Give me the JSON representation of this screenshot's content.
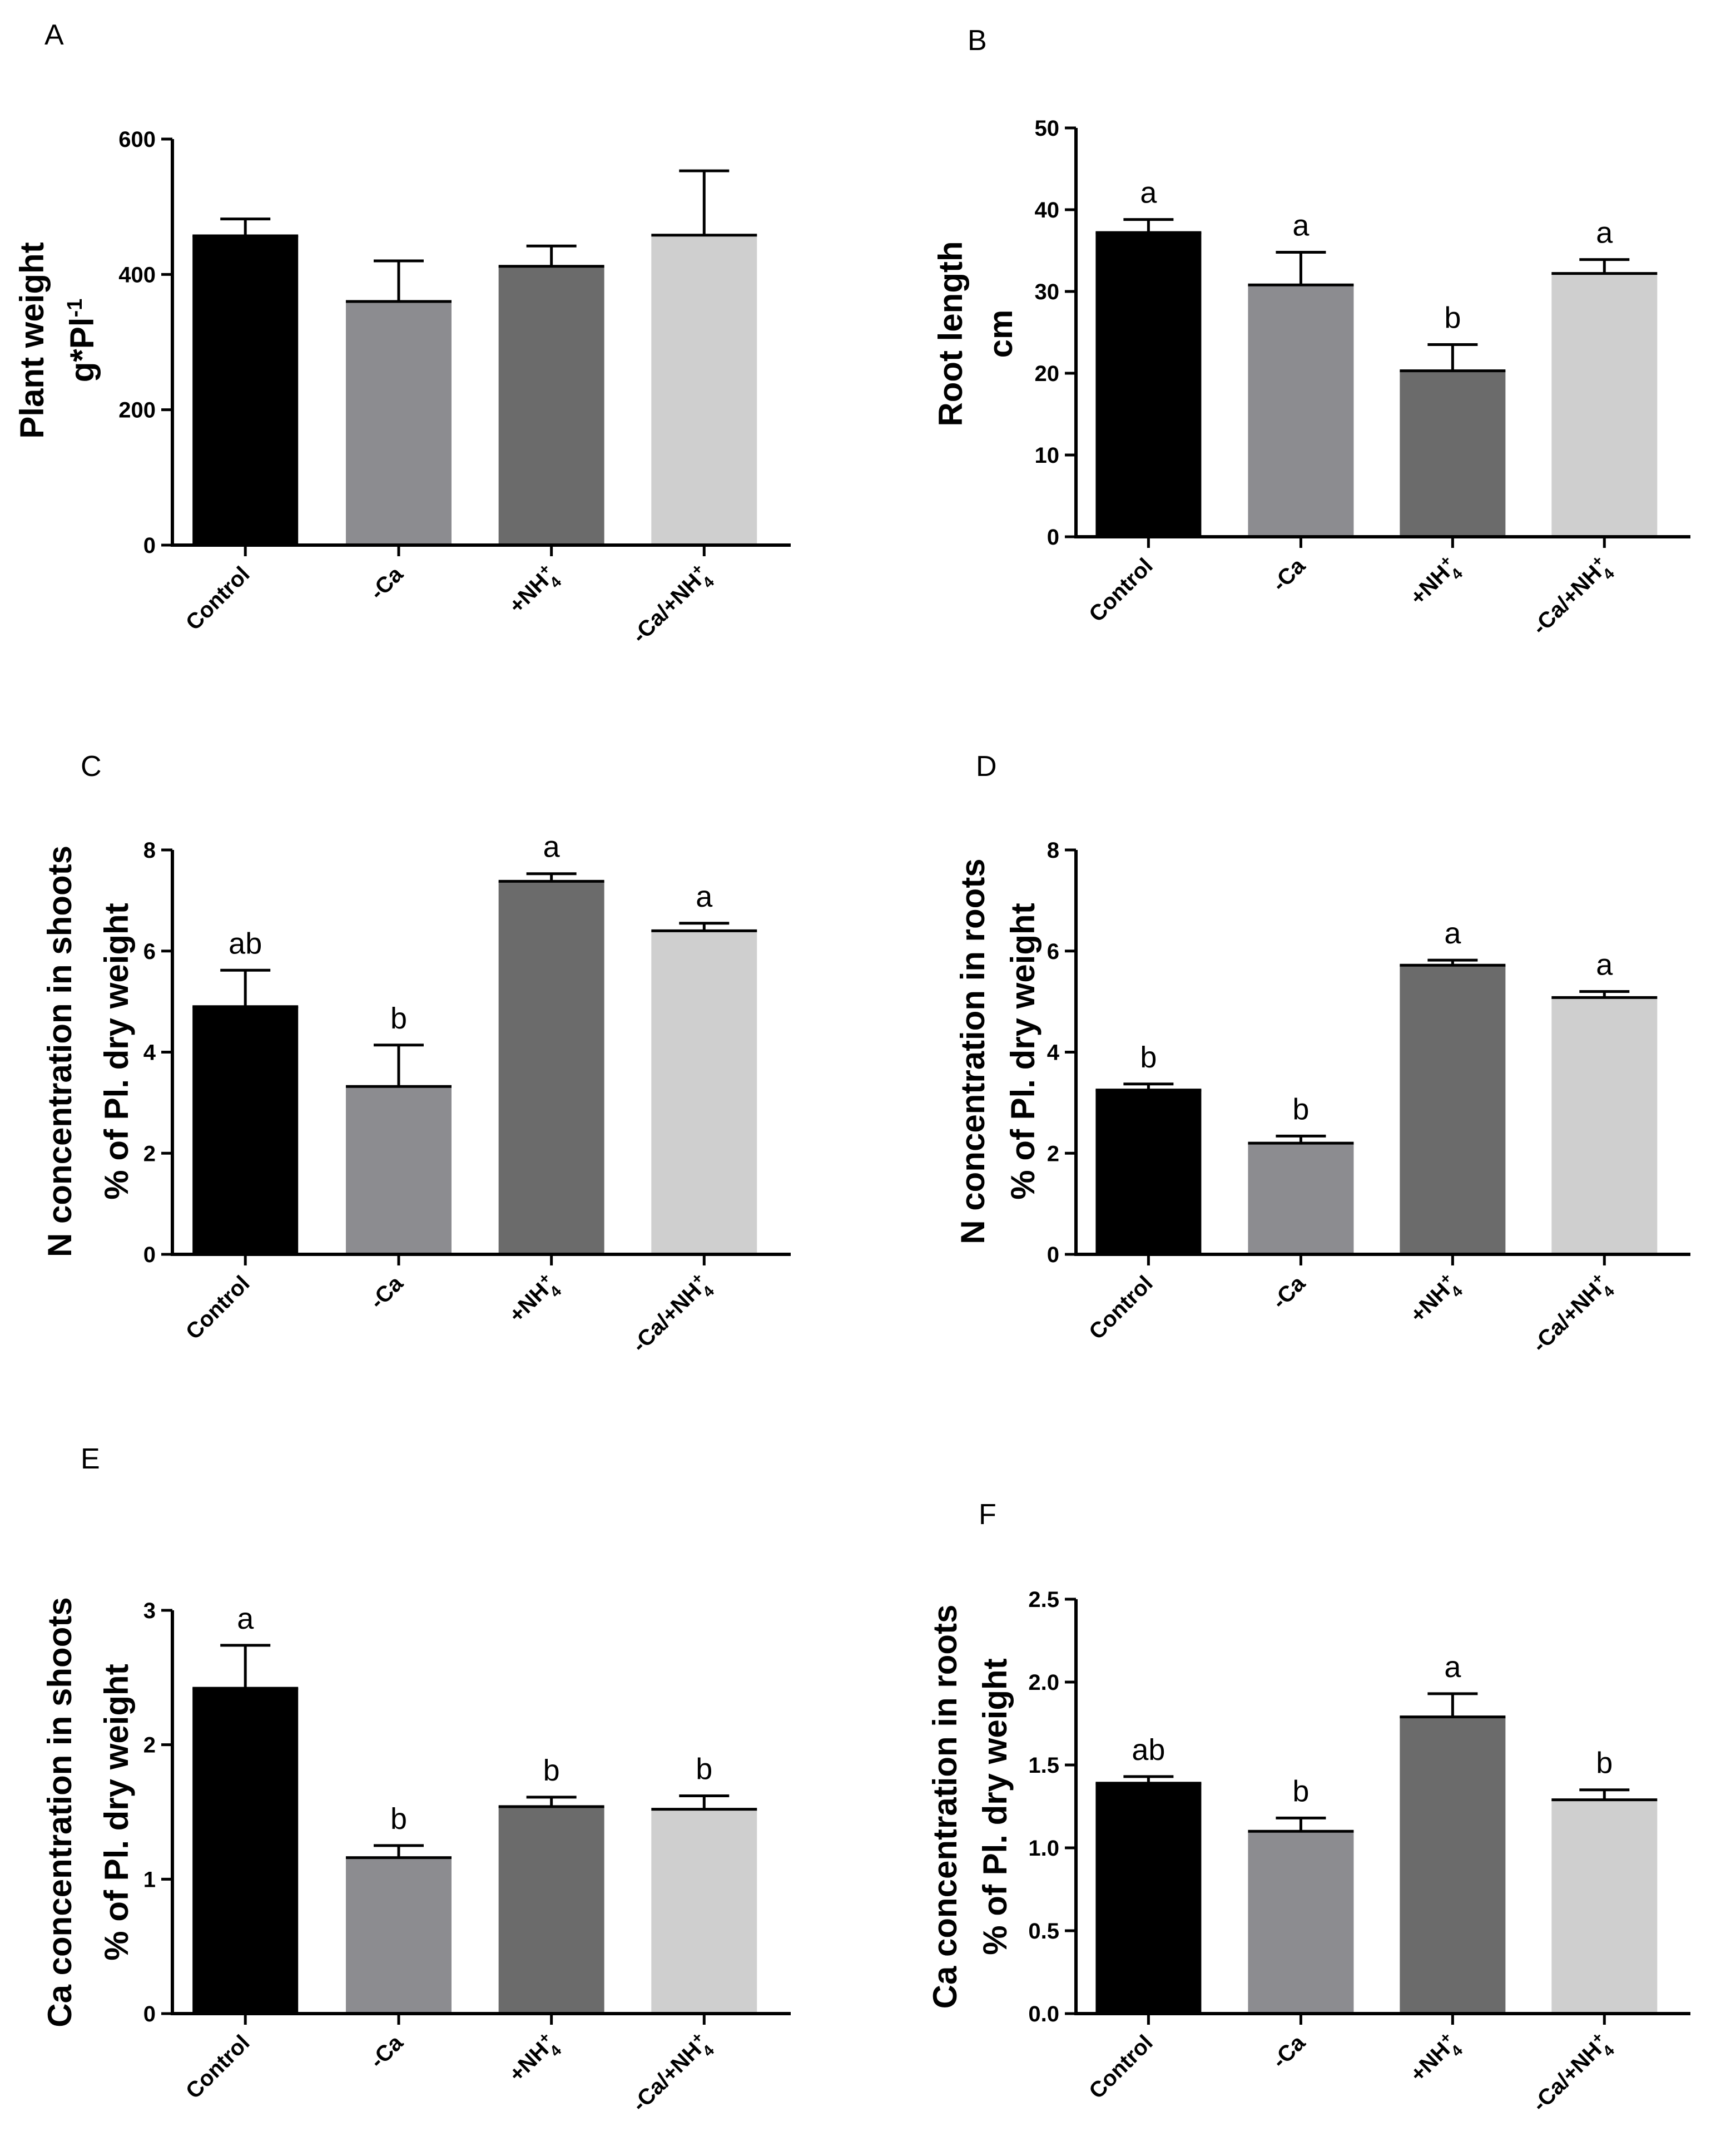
{
  "chart_data": [
    {
      "panel": "A",
      "type": "bar",
      "ylabel_lines": [
        "Plant weight",
        "g*Pl"
      ],
      "ylabel_superscript": "-1",
      "ylim": [
        0,
        600
      ],
      "yticks": [
        "0",
        "200",
        "400",
        "600"
      ],
      "categories": [
        {
          "base": "Control",
          "sub": "",
          "sup": "",
          "tail": ""
        },
        {
          "base": "-Ca",
          "sub": "",
          "sup": "",
          "tail": ""
        },
        {
          "base": "+NH",
          "sub": "4",
          "sup": "+",
          "tail": ""
        },
        {
          "base": "-Ca/+NH",
          "sub": "4",
          "sup": "+",
          "tail": ""
        }
      ],
      "values": [
        457,
        360,
        412,
        458
      ],
      "errors": [
        25,
        60,
        30,
        95
      ],
      "significance": [
        "",
        "",
        "",
        ""
      ],
      "colors": [
        "#000000",
        "#8c8c90",
        "#6b6b6b",
        "#cfcfcf"
      ]
    },
    {
      "panel": "B",
      "type": "bar",
      "ylabel_lines": [
        "Root length",
        "cm"
      ],
      "ylabel_superscript": "",
      "ylim": [
        0,
        50
      ],
      "yticks": [
        "0",
        "10",
        "20",
        "30",
        "40",
        "50"
      ],
      "categories": [
        {
          "base": "Control",
          "sub": "",
          "sup": "",
          "tail": ""
        },
        {
          "base": "-Ca",
          "sub": "",
          "sup": "",
          "tail": ""
        },
        {
          "base": "+NH",
          "sub": "4",
          "sup": "+",
          "tail": ""
        },
        {
          "base": "-Ca/+NH",
          "sub": "4",
          "sup": "+",
          "tail": ""
        }
      ],
      "values": [
        37.2,
        30.8,
        20.3,
        32.2
      ],
      "errors": [
        1.6,
        4.0,
        3.2,
        1.7
      ],
      "significance": [
        "a",
        "a",
        "b",
        "a"
      ],
      "colors": [
        "#000000",
        "#8c8c90",
        "#6b6b6b",
        "#cfcfcf"
      ]
    },
    {
      "panel": "C",
      "type": "bar",
      "ylabel_lines": [
        "N concentration in shoots",
        "% of Pl. dry weight"
      ],
      "ylabel_superscript": "",
      "ylim": [
        0,
        8
      ],
      "yticks": [
        "0",
        "2",
        "4",
        "6",
        "8"
      ],
      "categories": [
        {
          "base": "Control",
          "sub": "",
          "sup": "",
          "tail": ""
        },
        {
          "base": "-Ca",
          "sub": "",
          "sup": "",
          "tail": ""
        },
        {
          "base": "+NH",
          "sub": "4",
          "sup": "+",
          "tail": ""
        },
        {
          "base": "-Ca/+NH",
          "sub": "4",
          "sup": "+",
          "tail": ""
        }
      ],
      "values": [
        4.9,
        3.32,
        7.38,
        6.4
      ],
      "errors": [
        0.72,
        0.82,
        0.15,
        0.15
      ],
      "significance": [
        "ab",
        "b",
        "a",
        "a"
      ],
      "colors": [
        "#000000",
        "#8c8c90",
        "#6b6b6b",
        "#cfcfcf"
      ]
    },
    {
      "panel": "D",
      "type": "bar",
      "ylabel_lines": [
        "N concentration in roots",
        "% of Pl. dry weight"
      ],
      "ylabel_superscript": "",
      "ylim": [
        0,
        8
      ],
      "yticks": [
        "0",
        "2",
        "4",
        "6",
        "8"
      ],
      "categories": [
        {
          "base": "Control",
          "sub": "",
          "sup": "",
          "tail": ""
        },
        {
          "base": "-Ca",
          "sub": "",
          "sup": "",
          "tail": ""
        },
        {
          "base": "+NH",
          "sub": "4",
          "sup": "+",
          "tail": ""
        },
        {
          "base": "-Ca/+NH",
          "sub": "4",
          "sup": "+",
          "tail": ""
        }
      ],
      "values": [
        3.25,
        2.2,
        5.72,
        5.08
      ],
      "errors": [
        0.12,
        0.14,
        0.1,
        0.12
      ],
      "significance": [
        "b",
        "b",
        "a",
        "a"
      ],
      "colors": [
        "#000000",
        "#8c8c90",
        "#6b6b6b",
        "#cfcfcf"
      ]
    },
    {
      "panel": "E",
      "type": "bar",
      "ylabel_lines": [
        "Ca concentration in shoots",
        "% of Pl. dry weight"
      ],
      "ylabel_superscript": "",
      "ylim": [
        0,
        3
      ],
      "yticks": [
        "0",
        "1",
        "2",
        "3"
      ],
      "categories": [
        {
          "base": "Control",
          "sub": "",
          "sup": "",
          "tail": ""
        },
        {
          "base": "-Ca",
          "sub": "",
          "sup": "",
          "tail": ""
        },
        {
          "base": "+NH",
          "sub": "4",
          "sup": "+",
          "tail": ""
        },
        {
          "base": "-Ca/+NH",
          "sub": "4",
          "sup": "+",
          "tail": ""
        }
      ],
      "values": [
        2.42,
        1.16,
        1.54,
        1.52
      ],
      "errors": [
        0.32,
        0.09,
        0.07,
        0.1
      ],
      "significance": [
        "a",
        "b",
        "b",
        "b"
      ],
      "colors": [
        "#000000",
        "#8c8c90",
        "#6b6b6b",
        "#cfcfcf"
      ]
    },
    {
      "panel": "F",
      "type": "bar",
      "ylabel_lines": [
        "Ca concentration in roots",
        "% of Pl. dry weight"
      ],
      "ylabel_superscript": "",
      "ylim": [
        0,
        2.5
      ],
      "yticks": [
        "0.0",
        "0.5",
        "1.0",
        "1.5",
        "2.0",
        "2.5"
      ],
      "categories": [
        {
          "base": "Control",
          "sub": "",
          "sup": "",
          "tail": ""
        },
        {
          "base": "-Ca",
          "sub": "",
          "sup": "",
          "tail": ""
        },
        {
          "base": "+NH",
          "sub": "4",
          "sup": "+",
          "tail": ""
        },
        {
          "base": "-Ca/+NH",
          "sub": "4",
          "sup": "+",
          "tail": ""
        }
      ],
      "values": [
        1.39,
        1.1,
        1.79,
        1.29
      ],
      "errors": [
        0.04,
        0.08,
        0.14,
        0.06
      ],
      "significance": [
        "ab",
        "b",
        "a",
        "b"
      ],
      "colors": [
        "#000000",
        "#8c8c90",
        "#6b6b6b",
        "#cfcfcf"
      ]
    }
  ]
}
